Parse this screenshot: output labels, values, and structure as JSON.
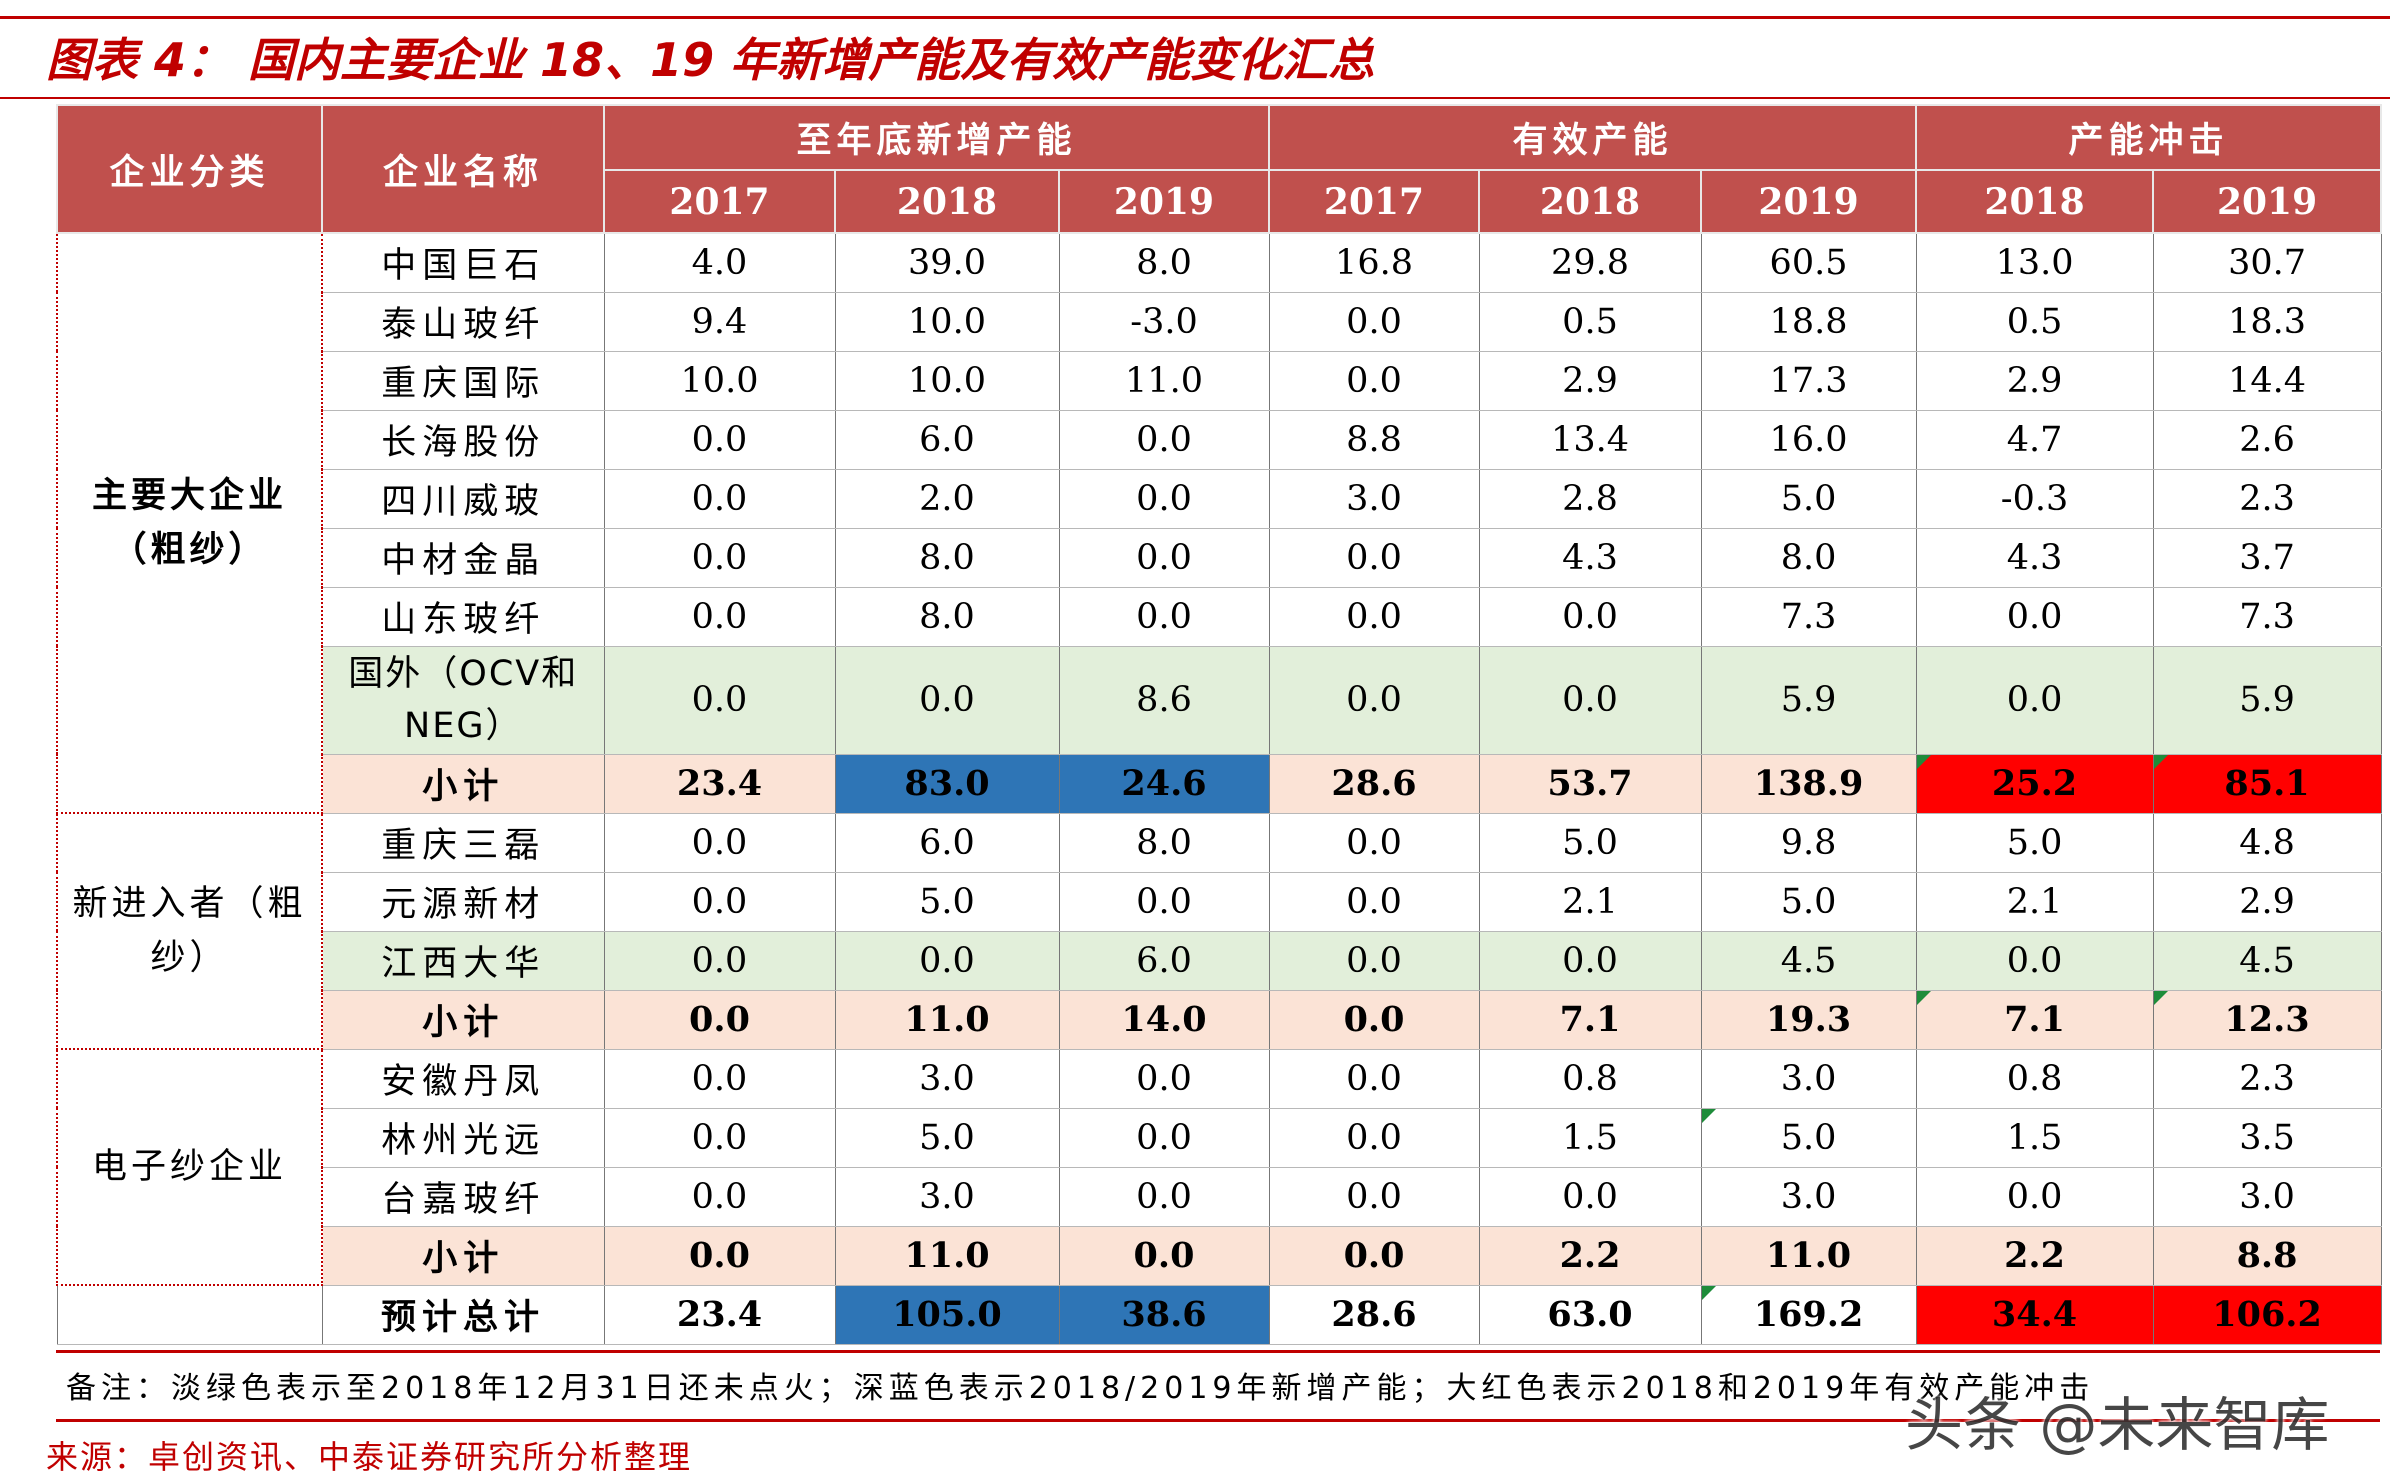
{
  "title": "图表 4：  国内主要企业 18、19 年新增产能及有效产能变化汇总",
  "header": {
    "category": "企业分类",
    "company": "企业名称",
    "group_new": "至年底新增产能",
    "group_effective": "有效产能",
    "group_impact": "产能冲击",
    "years": [
      "2017",
      "2018",
      "2019",
      "2017",
      "2018",
      "2019",
      "2018",
      "2019"
    ]
  },
  "groups": [
    {
      "category": "主要大企业（粗纱）",
      "rows": [
        {
          "name": "中国巨石",
          "values": [
            "4.0",
            "39.0",
            "8.0",
            "16.8",
            "29.8",
            "60.5",
            "13.0",
            "30.7"
          ]
        },
        {
          "name": "泰山玻纤",
          "values": [
            "9.4",
            "10.0",
            "-3.0",
            "0.0",
            "0.5",
            "18.8",
            "0.5",
            "18.3"
          ]
        },
        {
          "name": "重庆国际",
          "values": [
            "10.0",
            "10.0",
            "11.0",
            "0.0",
            "2.9",
            "17.3",
            "2.9",
            "14.4"
          ]
        },
        {
          "name": "长海股份",
          "values": [
            "0.0",
            "6.0",
            "0.0",
            "8.8",
            "13.4",
            "16.0",
            "4.7",
            "2.6"
          ]
        },
        {
          "name": "四川威玻",
          "values": [
            "0.0",
            "2.0",
            "0.0",
            "3.0",
            "2.8",
            "5.0",
            "-0.3",
            "2.3"
          ]
        },
        {
          "name": "中材金晶",
          "values": [
            "0.0",
            "8.0",
            "0.0",
            "0.0",
            "4.3",
            "8.0",
            "4.3",
            "3.7"
          ]
        },
        {
          "name": "山东玻纤",
          "values": [
            "0.0",
            "8.0",
            "0.0",
            "0.0",
            "0.0",
            "7.3",
            "0.0",
            "7.3"
          ]
        },
        {
          "name": "国外（OCV和NEG）",
          "values": [
            "0.0",
            "0.0",
            "8.6",
            "0.0",
            "0.0",
            "5.9",
            "0.0",
            "5.9"
          ]
        }
      ],
      "subtotal": {
        "label": "小计",
        "values": [
          "23.4",
          "83.0",
          "24.6",
          "28.6",
          "53.7",
          "138.9",
          "25.2",
          "85.1"
        ]
      }
    },
    {
      "category": "新进入者（粗纱）",
      "rows": [
        {
          "name": "重庆三磊",
          "values": [
            "0.0",
            "6.0",
            "8.0",
            "0.0",
            "5.0",
            "9.8",
            "5.0",
            "4.8"
          ]
        },
        {
          "name": "元源新材",
          "values": [
            "0.0",
            "5.0",
            "0.0",
            "0.0",
            "2.1",
            "5.0",
            "2.1",
            "2.9"
          ]
        },
        {
          "name": "江西大华",
          "values": [
            "0.0",
            "0.0",
            "6.0",
            "0.0",
            "0.0",
            "4.5",
            "0.0",
            "4.5"
          ]
        }
      ],
      "subtotal": {
        "label": "小计",
        "values": [
          "0.0",
          "11.0",
          "14.0",
          "0.0",
          "7.1",
          "19.3",
          "7.1",
          "12.3"
        ]
      }
    },
    {
      "category": "电子纱企业",
      "rows": [
        {
          "name": "安徽丹凤",
          "values": [
            "0.0",
            "3.0",
            "0.0",
            "0.0",
            "0.8",
            "3.0",
            "0.8",
            "2.3"
          ]
        },
        {
          "name": "林州光远",
          "values": [
            "0.0",
            "5.0",
            "0.0",
            "0.0",
            "1.5",
            "5.0",
            "1.5",
            "3.5"
          ]
        },
        {
          "name": "台嘉玻纤",
          "values": [
            "0.0",
            "3.0",
            "0.0",
            "0.0",
            "0.0",
            "3.0",
            "0.0",
            "3.0"
          ]
        }
      ],
      "subtotal": {
        "label": "小计",
        "values": [
          "0.0",
          "11.0",
          "0.0",
          "0.0",
          "2.2",
          "11.0",
          "2.2",
          "8.8"
        ]
      }
    }
  ],
  "total": {
    "label": "预计总计",
    "values": [
      "23.4",
      "105.0",
      "38.6",
      "28.6",
      "63.0",
      "169.2",
      "34.4",
      "106.2"
    ]
  },
  "note": "备注：淡绿色表示至2018年12月31日还未点火；深蓝色表示2018/2019年新增产能；大红色表示2018和2019年有效产能冲击",
  "source": "来源：卓创资讯、中泰证券研究所分析整理",
  "watermark": "头条 @未来智库",
  "colors": {
    "header_bg": "#c0504d",
    "not_ignited_green": "#e2efda",
    "subtotal_bg": "#fbe3d6",
    "new_capacity_blue": "#2e75b6",
    "impact_red": "#ff0000",
    "accent_red": "#c00000"
  }
}
